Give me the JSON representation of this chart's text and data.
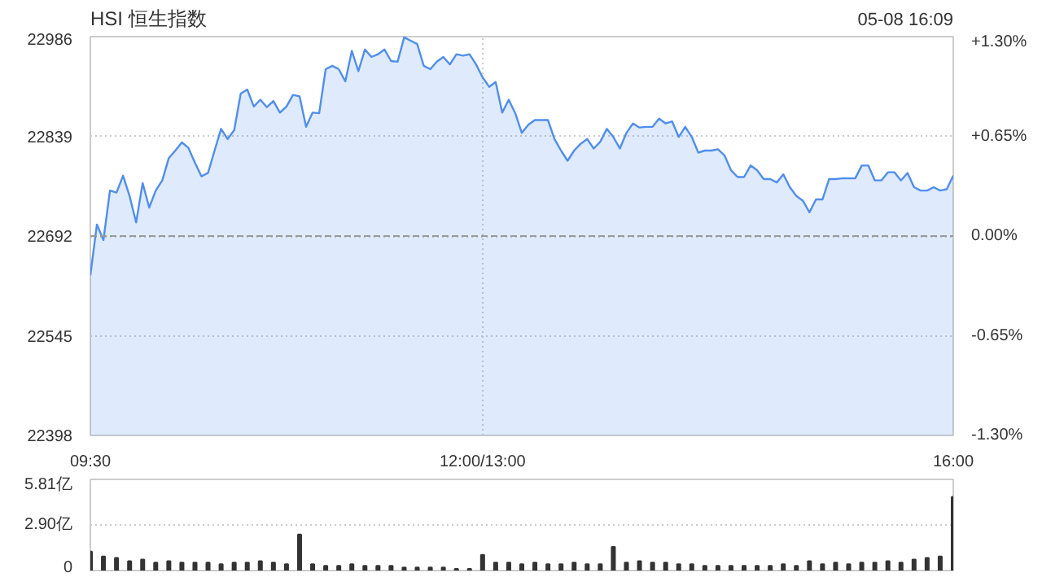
{
  "chart_data": [
    {
      "type": "area",
      "title": "HSI 恒生指数",
      "annotations": [
        "05-08 16:09"
      ],
      "categories": [
        "09:30",
        null,
        null,
        null,
        null,
        null,
        null,
        null,
        null,
        null,
        null,
        null,
        null,
        null,
        null,
        null,
        null,
        null,
        null,
        null,
        null,
        null,
        null,
        null,
        null,
        null,
        null,
        null,
        null,
        null,
        null,
        null,
        null,
        null,
        null,
        null,
        null,
        null,
        null,
        null,
        null,
        null,
        null,
        null,
        null,
        null,
        null,
        null,
        null,
        null,
        null,
        null,
        null,
        null,
        null,
        null,
        null,
        null,
        null,
        null,
        "12:00/13:00",
        null,
        null,
        null,
        null,
        null,
        null,
        null,
        null,
        null,
        null,
        null,
        null,
        null,
        null,
        null,
        null,
        null,
        null,
        null,
        null,
        null,
        null,
        null,
        null,
        null,
        null,
        null,
        null,
        null,
        null,
        null,
        null,
        null,
        null,
        null,
        null,
        null,
        null,
        null,
        null,
        null,
        null,
        null,
        null,
        null,
        null,
        null,
        null,
        null,
        null,
        null,
        null,
        null,
        null,
        null,
        null,
        null,
        null,
        null,
        null,
        null,
        null,
        null,
        null,
        null,
        null,
        null,
        null,
        null,
        null,
        null,
        "16:00"
      ],
      "ylim": [
        22398,
        22986
      ],
      "yticks": [
        22398,
        22545,
        22692,
        22839,
        22986
      ],
      "y2lim": [
        -1.3,
        1.3
      ],
      "y2ticks": [
        {
          "value": -1.3,
          "label": "-1.30%"
        },
        {
          "value": -0.65,
          "label": "-0.65%"
        },
        {
          "value": 0,
          "label": "0.00%"
        },
        {
          "value": 0.65,
          "label": "+0.65%"
        },
        {
          "value": 1.3,
          "label": "+1.30%"
        }
      ],
      "grid": true,
      "ref_lines": [
        {
          "axis": "y",
          "value": 22692,
          "label": null,
          "line_style": "dashed",
          "color": "#999999"
        }
      ],
      "series": [
        {
          "color": "#4f8ef0",
          "values": [
            22634,
            22709,
            22686,
            22759,
            22756,
            22781,
            22751,
            22712,
            22770,
            22734,
            22759,
            22774,
            22807,
            22818,
            22830,
            22822,
            22800,
            22780,
            22785,
            22818,
            22850,
            22835,
            22848,
            22902,
            22908,
            22883,
            22893,
            22882,
            22891,
            22874,
            22883,
            22900,
            22898,
            22853,
            22874,
            22873,
            22938,
            22943,
            22938,
            22920,
            22965,
            22935,
            22967,
            22956,
            22960,
            22967,
            22950,
            22949,
            22985,
            22980,
            22975,
            22943,
            22938,
            22949,
            22956,
            22945,
            22960,
            22958,
            22960,
            22945,
            22926,
            22912,
            22919,
            22874,
            22893,
            22873,
            22844,
            22856,
            22863,
            22863,
            22863,
            22835,
            22818,
            22803,
            22818,
            22828,
            22835,
            22821,
            22831,
            22850,
            22838,
            22821,
            22844,
            22858,
            22852,
            22853,
            22853,
            22865,
            22858,
            22861,
            22838,
            22853,
            22838,
            22815,
            22818,
            22818,
            22820,
            22811,
            22789,
            22779,
            22779,
            22796,
            22789,
            22776,
            22776,
            22771,
            22783,
            22764,
            22751,
            22744,
            22727,
            22746,
            22746,
            22776,
            22776,
            22777,
            22777,
            22777,
            22796,
            22796,
            22774,
            22774,
            22786,
            22786,
            22774,
            22785,
            22764,
            22759,
            22759,
            22764,
            22759,
            22761,
            22781
          ]
        }
      ]
    },
    {
      "type": "bar",
      "tick_labels": "y",
      "grid": "y",
      "categories": [
        null,
        null,
        null,
        null,
        null,
        null,
        null,
        null,
        null,
        null,
        null,
        null,
        null,
        null,
        null,
        null,
        null,
        null,
        null,
        null,
        null,
        null,
        null,
        null,
        null,
        null,
        null,
        null,
        null,
        null,
        null,
        null,
        null,
        null,
        null,
        null,
        null,
        null,
        null,
        null,
        null,
        null,
        null,
        null,
        null,
        null,
        null,
        null,
        null,
        null,
        null,
        null,
        null,
        null,
        null,
        null,
        null,
        null,
        null,
        null,
        null,
        null,
        null,
        null,
        null,
        null,
        null
      ],
      "ylim": [
        0,
        5.81
      ],
      "yticks": [
        0,
        {
          "value": 2.9,
          "label": "2.90亿"
        },
        {
          "value": 5.81,
          "label": "5.81亿"
        }
      ],
      "series": [
        {
          "color": "#333333",
          "values": [
            1.2,
            0.9,
            0.8,
            0.6,
            0.7,
            0.5,
            0.6,
            0.5,
            0.5,
            0.5,
            0.4,
            0.5,
            0.5,
            0.6,
            0.5,
            0.4,
            2.3,
            0.4,
            0.3,
            0.3,
            0.4,
            0.3,
            0.3,
            0.3,
            0.2,
            0.2,
            0.2,
            0.2,
            0.1,
            0.1,
            1.0,
            0.5,
            0.5,
            0.4,
            0.5,
            0.4,
            0.4,
            0.5,
            0.4,
            0.4,
            1.5,
            0.5,
            0.6,
            0.5,
            0.5,
            0.4,
            0.4,
            0.3,
            0.3,
            0.3,
            0.3,
            0.3,
            0.3,
            0.4,
            0.3,
            0.6,
            0.4,
            0.5,
            0.4,
            0.5,
            0.5,
            0.6,
            0.5,
            0.7,
            0.8,
            0.9,
            4.7
          ]
        }
      ]
    }
  ]
}
